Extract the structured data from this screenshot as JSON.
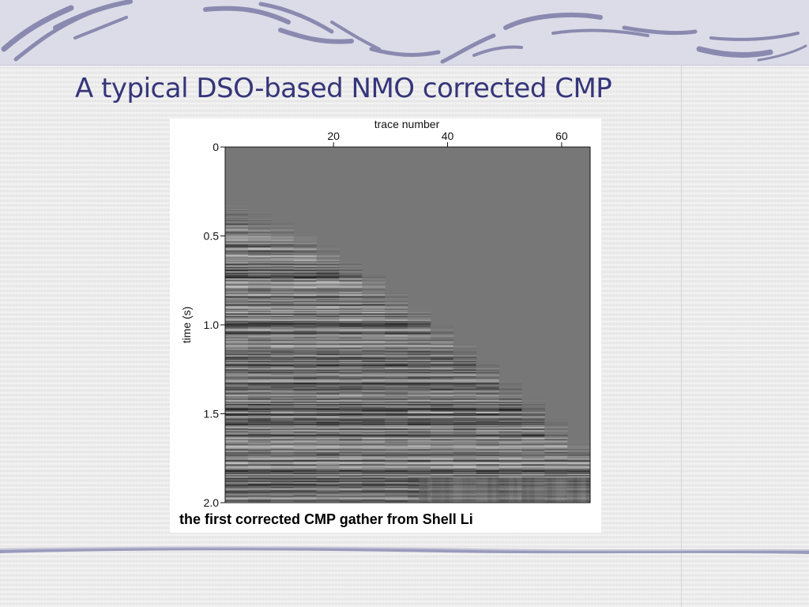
{
  "slide": {
    "title": "A typical DSO-based NMO corrected CMP"
  },
  "colors": {
    "title": "#35357a",
    "banner_bg": "#dcdce8",
    "swoosh": "#8a8ab0",
    "plot_bg": "#777777"
  },
  "chart_data": {
    "type": "heatmap",
    "title": "",
    "caption": "the first corrected CMP gather from Shell Li",
    "xlabel": "trace number",
    "ylabel": "time (s)",
    "x_axis_position": "top",
    "x_ticks": [
      20,
      40,
      60
    ],
    "y_ticks": [
      "0",
      "0.5",
      "1.0",
      "1.5",
      "2.0"
    ],
    "xlim": [
      1,
      65
    ],
    "ylim": [
      0,
      2.0
    ],
    "y_inverted": true,
    "grid": false,
    "legend": "none"
  }
}
